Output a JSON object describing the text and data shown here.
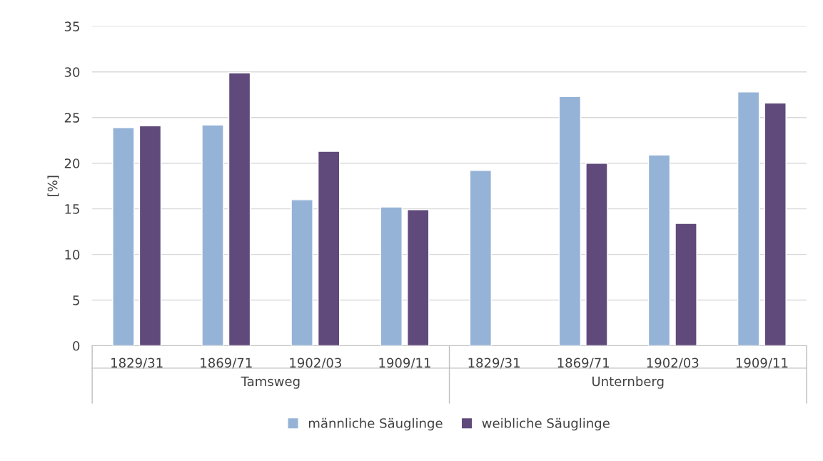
{
  "chart_data": {
    "type": "bar",
    "ylabel": "[%]",
    "categories": [
      "1829/31",
      "1869/71",
      "1902/03",
      "1909/11",
      "1829/31",
      "1869/71",
      "1902/03",
      "1909/11"
    ],
    "series": [
      {
        "name": "männliche Säuglinge",
        "color": "#95b3d7",
        "values": [
          23.9,
          24.2,
          16.0,
          15.2,
          19.2,
          27.3,
          20.9,
          27.8
        ]
      },
      {
        "name": "weibliche Säuglinge",
        "color": "#604a7b",
        "values": [
          24.1,
          29.9,
          21.3,
          14.9,
          null,
          20.0,
          13.4,
          26.6
        ]
      }
    ],
    "annotations": [
      "Tamsweg",
      "Unternberg"
    ],
    "ylim": [
      0,
      35
    ],
    "yticks": [
      0,
      5,
      10,
      15,
      20,
      25,
      30,
      35
    ],
    "grid": "y",
    "legend": "bottom"
  }
}
